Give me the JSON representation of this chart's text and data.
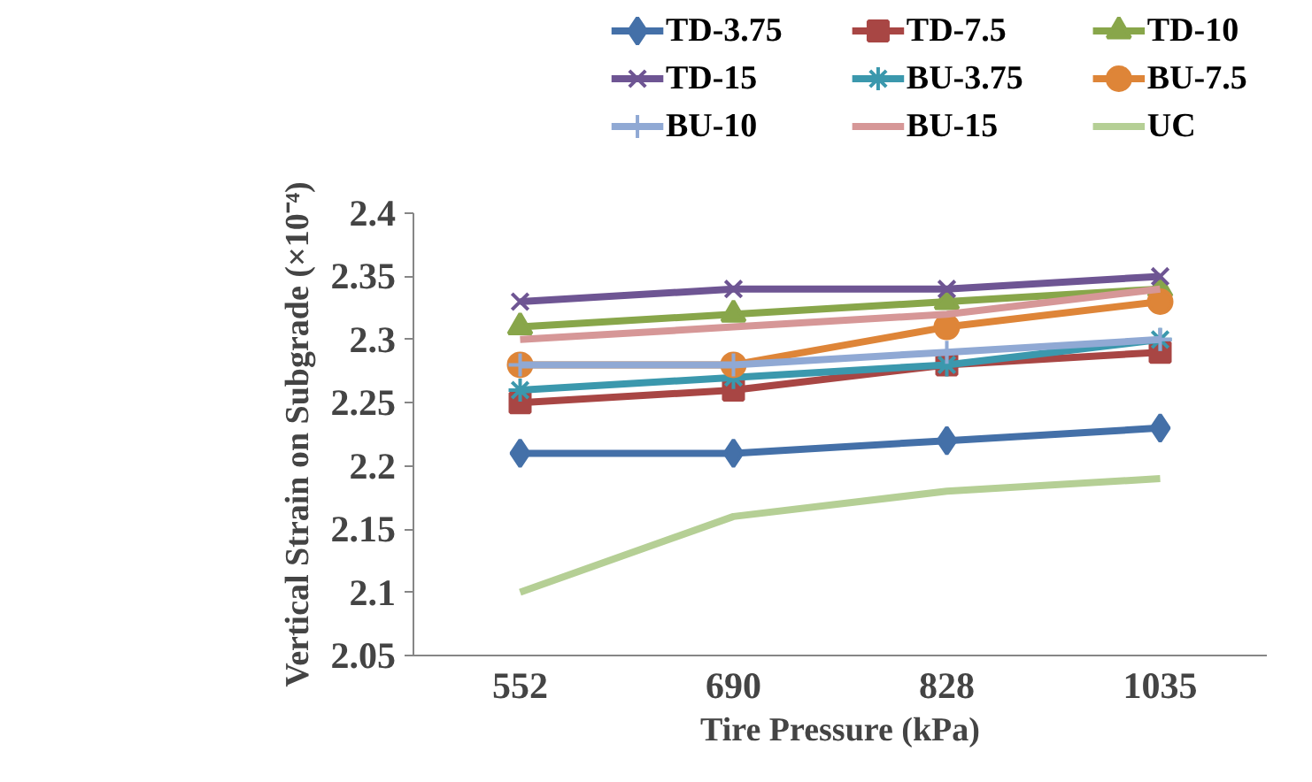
{
  "chart_data": {
    "type": "line",
    "xlabel": "Tire Pressure (kPa)",
    "ylabel": "Vertical Strain on Subgrade (×10⁻⁴)",
    "categories": [
      "552",
      "690",
      "828",
      "1035"
    ],
    "ylim": [
      2.05,
      2.4
    ],
    "yticks": [
      2.05,
      2.1,
      2.15,
      2.2,
      2.25,
      2.3,
      2.35,
      2.4
    ],
    "grid": false,
    "legend": "top",
    "series": [
      {
        "name": "TD-3.75",
        "color": "#4470a8",
        "marker": "diamond",
        "values": [
          2.21,
          2.21,
          2.22,
          2.23
        ]
      },
      {
        "name": "TD-7.5",
        "color": "#a84644",
        "marker": "square",
        "values": [
          2.25,
          2.26,
          2.28,
          2.29
        ]
      },
      {
        "name": "TD-10",
        "color": "#88a64a",
        "marker": "triangle",
        "values": [
          2.31,
          2.32,
          2.33,
          2.34
        ]
      },
      {
        "name": "TD-15",
        "color": "#6e5593",
        "marker": "x",
        "values": [
          2.33,
          2.34,
          2.34,
          2.35
        ]
      },
      {
        "name": "BU-3.75",
        "color": "#3b98ad",
        "marker": "cross",
        "values": [
          2.26,
          2.27,
          2.28,
          2.3
        ]
      },
      {
        "name": "BU-7.5",
        "color": "#de8538",
        "marker": "circle",
        "values": [
          2.28,
          2.28,
          2.31,
          2.33
        ]
      },
      {
        "name": "BU-10",
        "color": "#90a9d4",
        "marker": "plus",
        "values": [
          2.28,
          2.28,
          2.29,
          2.3
        ]
      },
      {
        "name": "BU-15",
        "color": "#d69797",
        "marker": "none",
        "values": [
          2.3,
          2.31,
          2.32,
          2.34
        ]
      },
      {
        "name": "UC",
        "color": "#b5cf95",
        "marker": "none",
        "values": [
          2.1,
          2.16,
          2.18,
          2.19
        ]
      }
    ]
  }
}
